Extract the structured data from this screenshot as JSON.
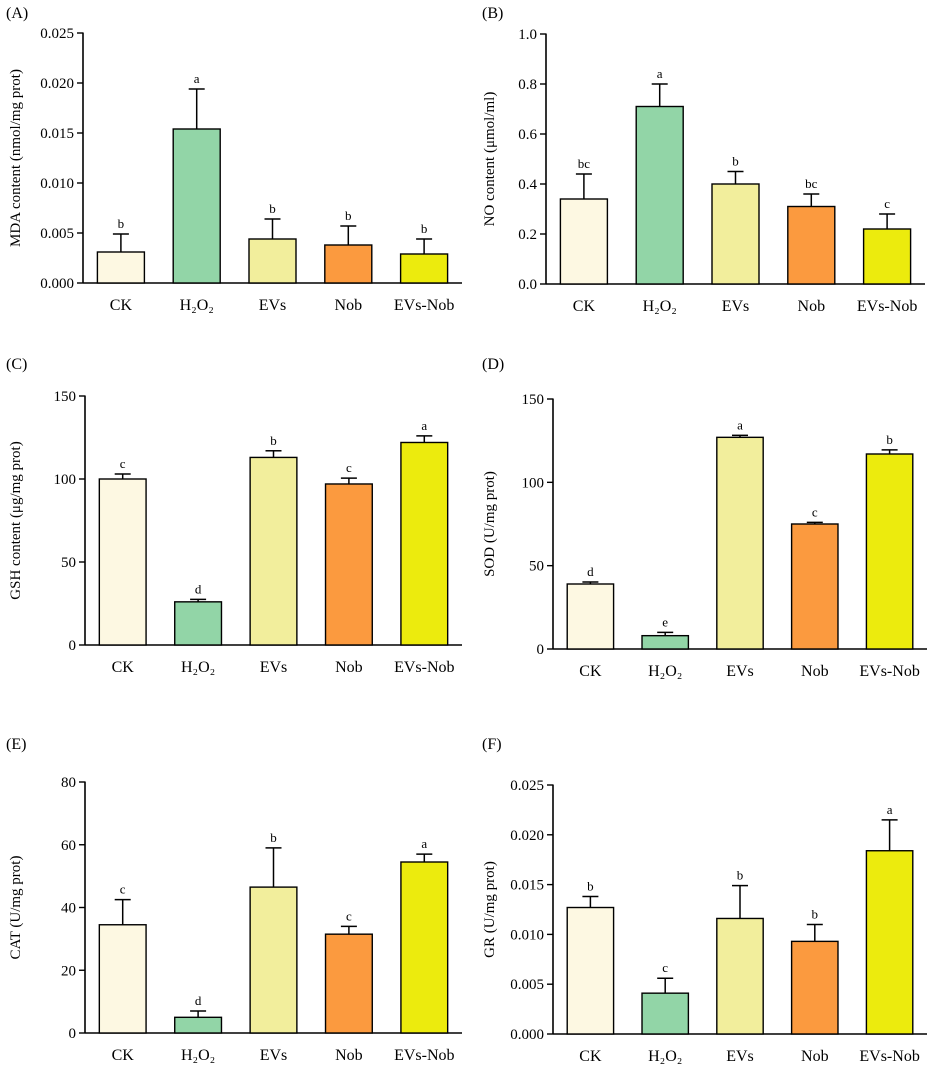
{
  "colors": [
    "#fdf8e2",
    "#92d5a7",
    "#f2ee9c",
    "#fb9a3f",
    "#eceb0d"
  ],
  "categories": [
    "CK",
    "H₂O₂",
    "EVs",
    "Nob",
    "EVs-Nob"
  ],
  "chart_data": [
    {
      "type": "bar",
      "panel": "(A)",
      "title": "",
      "xlabel": "",
      "ylabel": "MDA content (nmol/mg prot)",
      "categories": [
        "CK",
        "H₂O₂",
        "EVs",
        "Nob",
        "EVs-Nob"
      ],
      "values": [
        0.0031,
        0.0154,
        0.0044,
        0.0038,
        0.0029
      ],
      "errors": [
        0.0018,
        0.004,
        0.002,
        0.0019,
        0.0015
      ],
      "letters": [
        "b",
        "a",
        "b",
        "b",
        "b"
      ],
      "ylim": [
        0,
        0.025
      ],
      "ticks": [
        0.0,
        0.005,
        0.01,
        0.015,
        0.02,
        0.025
      ],
      "tick_labels": [
        "0.000",
        "0.005",
        "0.010",
        "0.015",
        "0.020",
        "0.025"
      ]
    },
    {
      "type": "bar",
      "panel": "(B)",
      "title": "",
      "xlabel": "",
      "ylabel": "NO content (μmol/ml)",
      "categories": [
        "CK",
        "H₂O₂",
        "EVs",
        "Nob",
        "EVs-Nob"
      ],
      "values": [
        0.34,
        0.71,
        0.4,
        0.31,
        0.22
      ],
      "errors": [
        0.1,
        0.09,
        0.05,
        0.05,
        0.06
      ],
      "letters": [
        "bc",
        "a",
        "b",
        "bc",
        "c"
      ],
      "ylim": [
        0,
        1.0
      ],
      "ticks": [
        0.0,
        0.2,
        0.4,
        0.6,
        0.8,
        1.0
      ],
      "tick_labels": [
        "0.0",
        "0.2",
        "0.4",
        "0.6",
        "0.8",
        "1.0"
      ]
    },
    {
      "type": "bar",
      "panel": "(C)",
      "title": "",
      "xlabel": "",
      "ylabel": "GSH content (μg/mg prot)",
      "categories": [
        "CK",
        "H₂O₂",
        "EVs",
        "Nob",
        "EVs-Nob"
      ],
      "values": [
        100,
        26,
        113,
        97,
        122
      ],
      "errors": [
        3,
        1.5,
        4,
        3.5,
        4
      ],
      "letters": [
        "c",
        "d",
        "b",
        "c",
        "a"
      ],
      "ylim": [
        0,
        150
      ],
      "ticks": [
        0,
        50,
        100,
        150
      ],
      "tick_labels": [
        "0",
        "50",
        "100",
        "150"
      ]
    },
    {
      "type": "bar",
      "panel": "(D)",
      "title": "",
      "xlabel": "",
      "ylabel": "SOD (U/mg prot)",
      "categories": [
        "CK",
        "H₂O₂",
        "EVs",
        "Nob",
        "EVs-Nob"
      ],
      "values": [
        39,
        8,
        127,
        75,
        117
      ],
      "errors": [
        1.2,
        2,
        1.2,
        1,
        2.5
      ],
      "letters": [
        "d",
        "e",
        "a",
        "c",
        "b"
      ],
      "ylim": [
        0,
        150
      ],
      "ticks": [
        0,
        50,
        100,
        150
      ],
      "tick_labels": [
        "0",
        "50",
        "100",
        "150"
      ]
    },
    {
      "type": "bar",
      "panel": "(E)",
      "title": "",
      "xlabel": "",
      "ylabel": "CAT (U/mg prot)",
      "categories": [
        "CK",
        "H₂O₂",
        "EVs",
        "Nob",
        "EVs-Nob"
      ],
      "values": [
        34.5,
        5,
        46.5,
        31.5,
        54.5
      ],
      "errors": [
        8,
        2,
        12.5,
        2.5,
        2.5
      ],
      "letters": [
        "c",
        "d",
        "b",
        "c",
        "a"
      ],
      "ylim": [
        0,
        80
      ],
      "ticks": [
        0,
        20,
        40,
        60,
        80
      ],
      "tick_labels": [
        "0",
        "20",
        "40",
        "60",
        "80"
      ]
    },
    {
      "type": "bar",
      "panel": "(F)",
      "title": "",
      "xlabel": "",
      "ylabel": "GR (U/mg prot)",
      "categories": [
        "CK",
        "H₂O₂",
        "EVs",
        "Nob",
        "EVs-Nob"
      ],
      "values": [
        0.0127,
        0.0041,
        0.0116,
        0.0093,
        0.0184
      ],
      "errors": [
        0.0011,
        0.0015,
        0.0033,
        0.0017,
        0.0031
      ],
      "letters": [
        "b",
        "c",
        "b",
        "b",
        "a"
      ],
      "ylim": [
        0,
        0.025
      ],
      "ticks": [
        0.0,
        0.005,
        0.01,
        0.015,
        0.02,
        0.025
      ],
      "tick_labels": [
        "0.000",
        "0.005",
        "0.010",
        "0.015",
        "0.020",
        "0.025"
      ]
    }
  ]
}
